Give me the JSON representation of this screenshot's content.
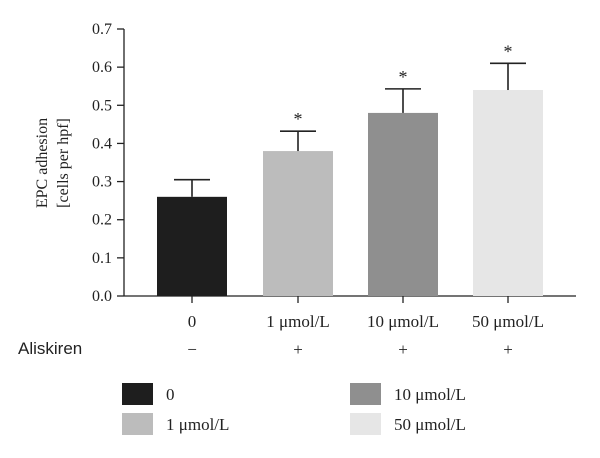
{
  "chart_data": {
    "type": "bar",
    "categories": [
      "0",
      "1 μmol/L",
      "10 μmol/L",
      "50 μmol/L"
    ],
    "values": [
      0.26,
      0.38,
      0.48,
      0.54
    ],
    "error_upper": [
      0.305,
      0.432,
      0.543,
      0.61
    ],
    "significance": [
      "",
      "*",
      "*",
      "*"
    ],
    "ylabel_line1": "EPC adhesion",
    "ylabel_line2": "[cells per hpf]",
    "ylim": [
      0,
      0.7
    ],
    "yticks": [
      "0.0",
      "0.1",
      "0.2",
      "0.3",
      "0.4",
      "0.5",
      "0.6",
      "0.7"
    ],
    "grid": false,
    "colors": [
      "#1e1e1e",
      "#bcbcbc",
      "#8f8f8f",
      "#e6e6e6"
    ],
    "treatment_row": {
      "label": "Aliskiren",
      "marks": [
        "−",
        "+",
        "+",
        "+"
      ]
    },
    "legend": {
      "placement": "bottom",
      "entries": [
        {
          "label": "0",
          "color": "#1e1e1e"
        },
        {
          "label": "10 μmol/L",
          "color": "#8f8f8f"
        },
        {
          "label": "1 μmol/L",
          "color": "#bcbcbc"
        },
        {
          "label": "50 μmol/L",
          "color": "#e6e6e6"
        }
      ]
    }
  }
}
